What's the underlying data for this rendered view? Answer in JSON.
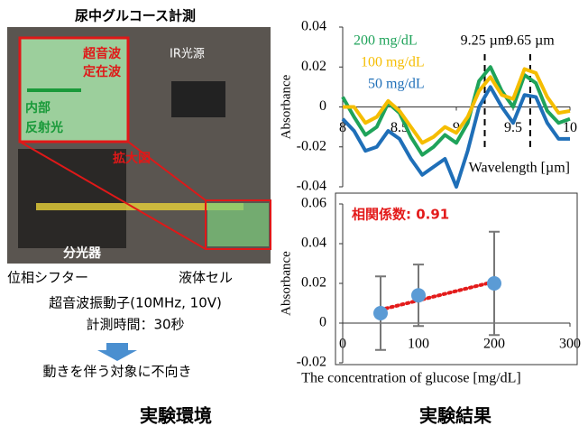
{
  "header": {
    "title": "尿中グルコース計測"
  },
  "photo_labels": {
    "ir_source": "IR光源",
    "ultrasound_1": "超音波",
    "ultrasound_2": "定在波",
    "reflect_1": "内部",
    "reflect_2": "反射光",
    "zoom": "拡大図",
    "spectrometer": "分光器",
    "phase_shifter": "位相シフター",
    "cell": "液体セル"
  },
  "notes": {
    "transducer": "超音波振動子(10MHz, 10V)",
    "time": "計測時間：30秒",
    "drawback": "動きを伴う対象に不向き"
  },
  "footer": {
    "left": "実験環境",
    "right": "実験結果"
  },
  "chart_data": [
    {
      "type": "line",
      "x_label": "Wavelength [µm]",
      "y_label": "Absorbance",
      "x": [
        8.0,
        8.1,
        8.2,
        8.3,
        8.4,
        8.5,
        8.6,
        8.7,
        8.8,
        8.9,
        9.0,
        9.1,
        9.2,
        9.3,
        9.4,
        9.5,
        9.6,
        9.7,
        9.8,
        9.9,
        10.0
      ],
      "series": [
        {
          "name": "200 mg/dL",
          "color": "#1fa35a",
          "values": [
            0.005,
            -0.005,
            -0.014,
            -0.01,
            0.002,
            -0.003,
            -0.015,
            -0.024,
            -0.02,
            -0.014,
            -0.018,
            -0.008,
            0.013,
            0.02,
            0.008,
            0.0,
            0.016,
            0.012,
            -0.002,
            -0.008,
            -0.006
          ]
        },
        {
          "name": "100 mg/dL",
          "color": "#f5bd00",
          "values": [
            0.0,
            0.0,
            -0.008,
            -0.005,
            0.003,
            -0.002,
            -0.01,
            -0.018,
            -0.015,
            -0.01,
            -0.013,
            -0.005,
            0.008,
            0.015,
            0.006,
            0.004,
            0.019,
            0.017,
            0.005,
            -0.003,
            -0.002
          ]
        },
        {
          "name": "50 mg/dL",
          "color": "#1f6fb8",
          "values": [
            -0.006,
            -0.012,
            -0.022,
            -0.02,
            -0.012,
            -0.016,
            -0.026,
            -0.034,
            -0.03,
            -0.026,
            -0.04,
            -0.022,
            0.0,
            0.01,
            0.0,
            -0.008,
            0.006,
            0.005,
            -0.008,
            -0.016,
            -0.016
          ]
        }
      ],
      "vlines": [
        {
          "x": 9.25,
          "label": "9.25 µm"
        },
        {
          "x": 9.65,
          "label": "9.65 µm"
        }
      ],
      "xlim": [
        8,
        10
      ],
      "xticks": [
        8,
        8.5,
        9,
        9.5,
        10
      ],
      "ylim": [
        -0.04,
        0.04
      ],
      "yticks": [
        -0.04,
        -0.02,
        0,
        0.02,
        0.04
      ],
      "legend": "upper left"
    },
    {
      "type": "scatter",
      "x_label": "The concentration of glucose [mg/dL]",
      "y_label": "Absorbance",
      "annotation": "相関係数: 0.91",
      "x": [
        50,
        100,
        200
      ],
      "values": [
        0.005,
        0.014,
        0.02
      ],
      "errors": [
        0.0185,
        0.0155,
        0.026
      ],
      "color": "#5b9bd5",
      "trendline_color": "#e31b1b",
      "xlim": [
        0,
        300
      ],
      "xticks": [
        0,
        100,
        200,
        300
      ],
      "ylim": [
        -0.02,
        0.06
      ],
      "yticks": [
        -0.02,
        0,
        0.02,
        0.04,
        0.06
      ]
    }
  ]
}
